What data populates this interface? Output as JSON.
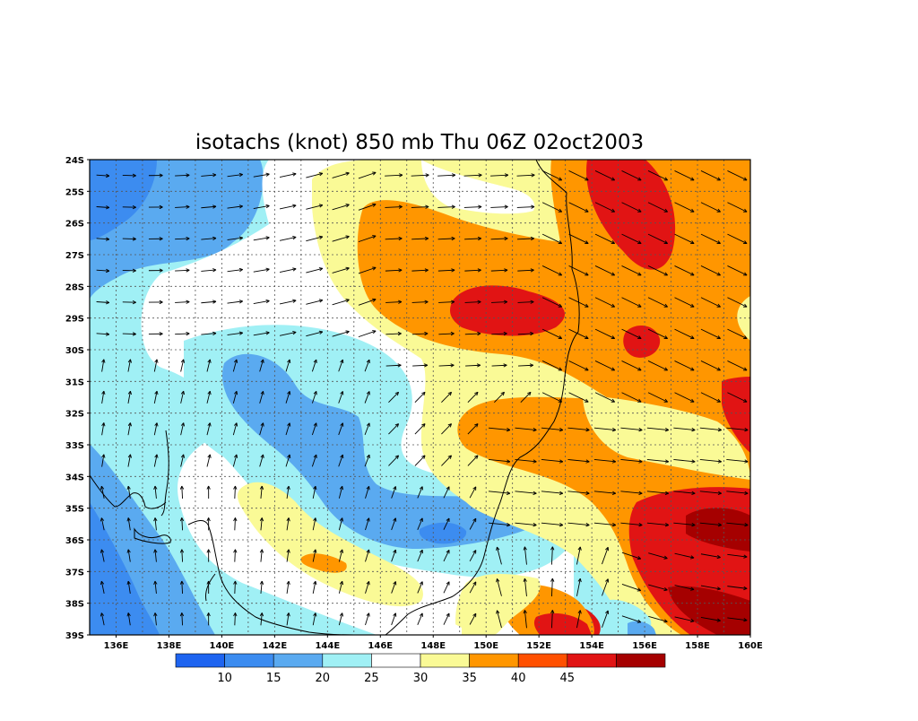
{
  "title": "isotachs (knot) 850 mb Thu 06Z 02oct2003",
  "map": {
    "lon_range": [
      135,
      160
    ],
    "lat_range": [
      -39,
      -24
    ],
    "lon_ticks": [
      "136E",
      "138E",
      "140E",
      "142E",
      "144E",
      "146E",
      "148E",
      "150E",
      "152E",
      "154E",
      "156E",
      "158E",
      "160E"
    ],
    "lat_ticks": [
      "24S",
      "25S",
      "26S",
      "27S",
      "28S",
      "29S",
      "30S",
      "31S",
      "32S",
      "33S",
      "34S",
      "35S",
      "36S",
      "37S",
      "38S",
      "39S"
    ],
    "grid": "dotted",
    "vectors": "wind arrows"
  },
  "colorbar": {
    "labels": [
      "10",
      "15",
      "20",
      "25",
      "30",
      "35",
      "40",
      "45"
    ],
    "colors": [
      "#1e64f0",
      "#3c8cf0",
      "#5aaaf0",
      "#a0f0f5",
      "#ffffff",
      "#fafa96",
      "#ff9600",
      "#ff5000",
      "#e11414",
      "#a50000"
    ]
  },
  "palette": {
    "c15": "#3c8cf0",
    "c20": "#5aaaf0",
    "c25": "#a0f0f5",
    "c30": "#ffffff",
    "c35": "#fafa96",
    "c40": "#ff9600",
    "c45": "#e11414",
    "c50": "#a50000"
  }
}
